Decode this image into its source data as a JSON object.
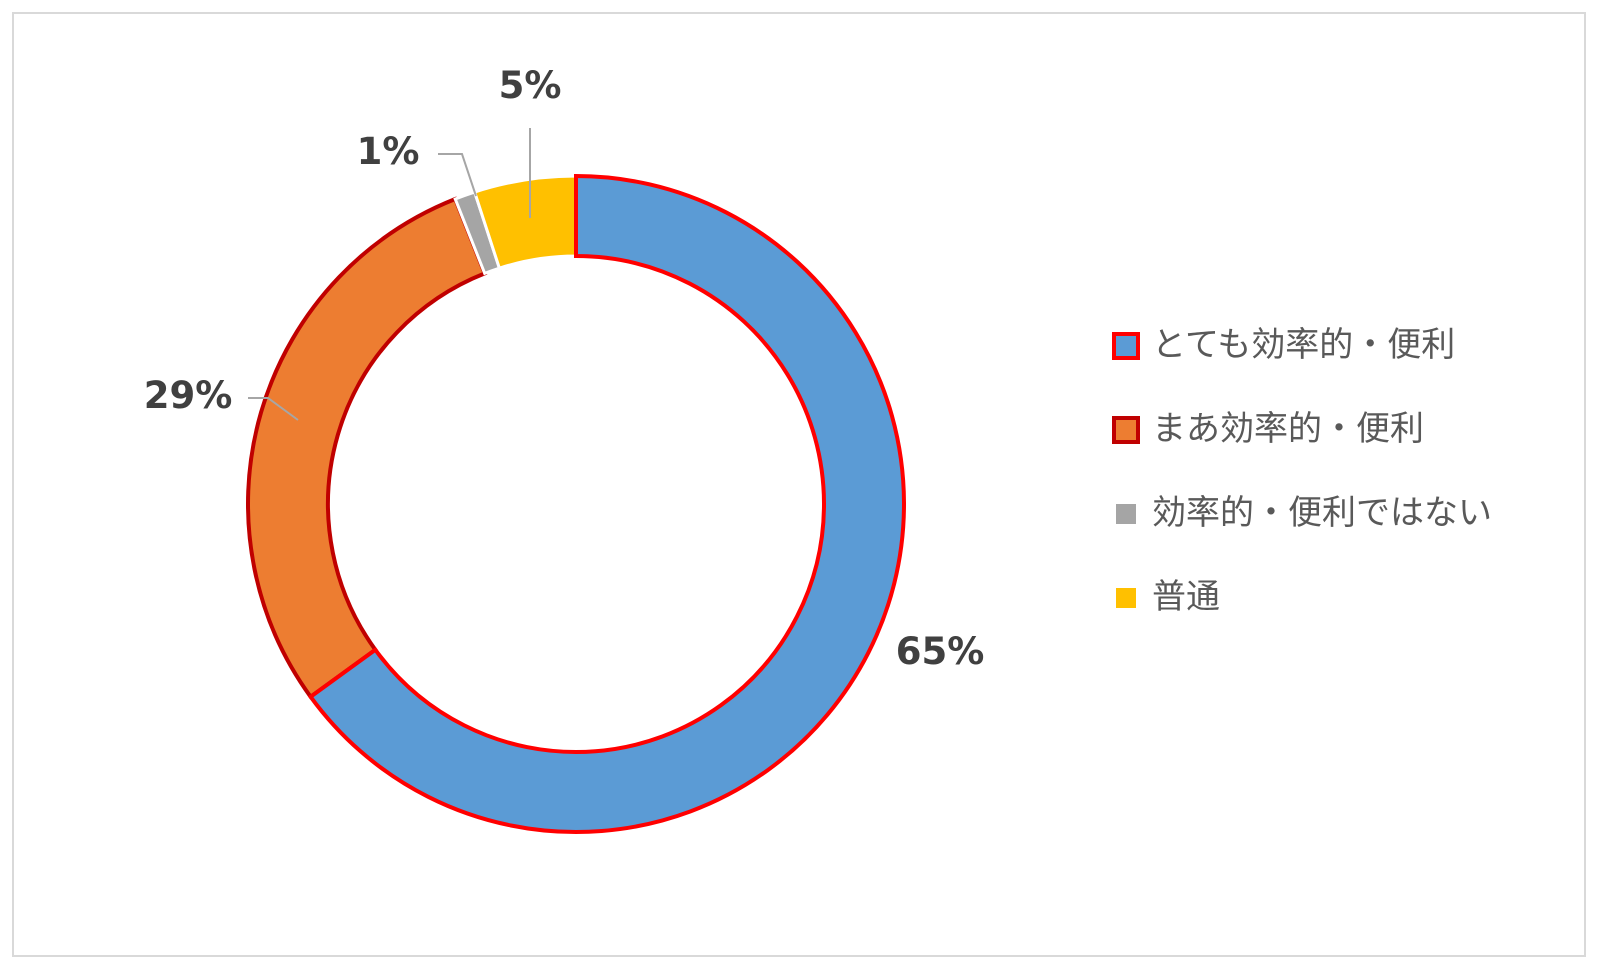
{
  "chart_data": {
    "type": "pie",
    "variant": "donut",
    "categories": [
      "とても効率的・便利",
      "まあ効率的・便利",
      "効率的・便利ではない",
      "普通"
    ],
    "values": [
      65,
      29,
      1,
      5
    ],
    "labels": [
      "65%",
      "29%",
      "1%",
      "5%"
    ],
    "colors": [
      "#5b9bd5",
      "#ed7d31",
      "#a5a5a5",
      "#ffc000"
    ],
    "outline_colors": [
      "#ff0000",
      "#c00000",
      "none",
      "none"
    ],
    "legend_position": "right",
    "start_angle_deg": 0,
    "direction": "clockwise"
  }
}
